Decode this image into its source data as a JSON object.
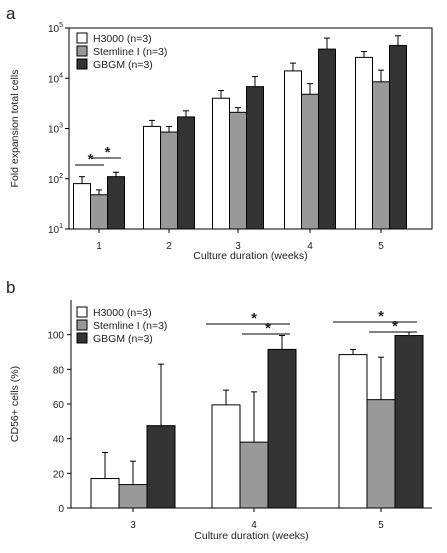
{
  "chart_data": [
    {
      "panel": "a",
      "type": "bar",
      "categories": [
        "1",
        "2",
        "3",
        "4",
        "5"
      ],
      "xlabel": "Culture duration (weeks)",
      "ylabel": "Fold expansion total cells",
      "yscale": "log",
      "ylim": [
        10,
        100000
      ],
      "yticks": [
        {
          "base": "10",
          "exp": "1"
        },
        {
          "base": "10",
          "exp": "2"
        },
        {
          "base": "10",
          "exp": "3"
        },
        {
          "base": "10",
          "exp": "4"
        },
        {
          "base": "10",
          "exp": "5"
        }
      ],
      "legend_position": "top-left",
      "series": [
        {
          "name": "H3000 (n=3)",
          "color": "#ffffff",
          "values": [
            80,
            1100,
            4000,
            14000,
            26000
          ],
          "errors": [
            30,
            350,
            1700,
            6000,
            8000
          ]
        },
        {
          "name": "Stemline I (n=3)",
          "color": "#999999",
          "values": [
            48,
            850,
            2100,
            4800,
            8500
          ],
          "errors": [
            12,
            250,
            500,
            3000,
            6000
          ]
        },
        {
          "name": "GBGM (n=3)",
          "color": "#333333",
          "values": [
            110,
            1700,
            6800,
            38000,
            45000
          ],
          "errors": [
            25,
            550,
            4000,
            25000,
            25000
          ]
        }
      ],
      "significance": [
        {
          "category": "1",
          "from": 0,
          "to": 1,
          "label": "*"
        },
        {
          "category": "1",
          "from": 1,
          "to": 2,
          "label": "*"
        }
      ]
    },
    {
      "panel": "b",
      "type": "bar",
      "categories": [
        "3",
        "4",
        "5"
      ],
      "xlabel": "Culture duration (weeks)",
      "ylabel": "CD56+ cells (%)",
      "yscale": "linear",
      "ylim": [
        0,
        120
      ],
      "yticks": [
        "0",
        "20",
        "40",
        "60",
        "80",
        "100"
      ],
      "legend_position": "top-left",
      "series": [
        {
          "name": "H3000 (n=3)",
          "color": "#ffffff",
          "values": [
            17,
            59.5,
            88.5
          ],
          "errors": [
            15,
            8.5,
            3
          ]
        },
        {
          "name": "Stemline I (n=3)",
          "color": "#999999",
          "values": [
            13.5,
            38,
            62.5
          ],
          "errors": [
            13.5,
            29,
            24.5
          ]
        },
        {
          "name": "GBGM (n=3)",
          "color": "#333333",
          "values": [
            47.5,
            91.5,
            99.5
          ],
          "errors": [
            35.5,
            8,
            2
          ]
        }
      ],
      "significance": [
        {
          "category": "4",
          "from": 0,
          "to": 2,
          "label": "*"
        },
        {
          "category": "4",
          "from": 1,
          "to": 2,
          "label": "*"
        },
        {
          "category": "5",
          "from": 0,
          "to": 2,
          "label": "*"
        },
        {
          "category": "5",
          "from": 1,
          "to": 2,
          "label": "*"
        }
      ]
    }
  ]
}
